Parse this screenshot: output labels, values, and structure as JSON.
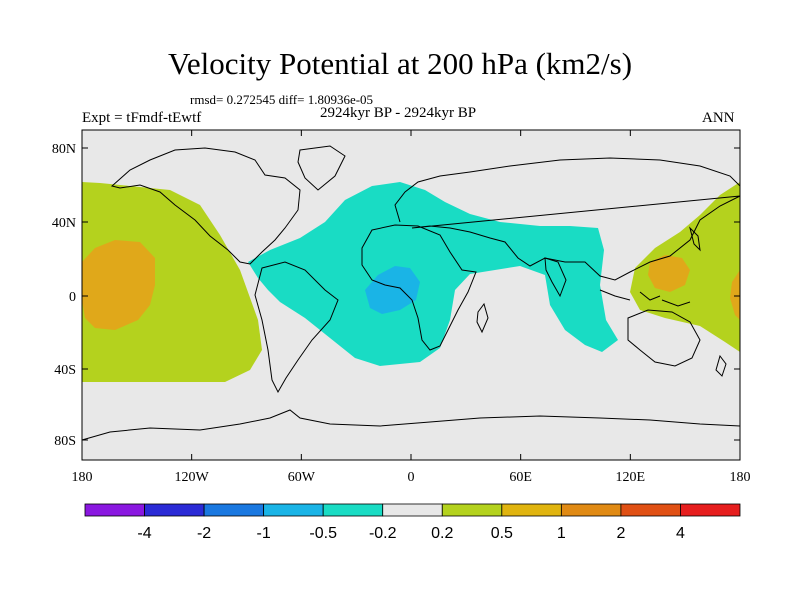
{
  "title": "Velocity Potential at 200 hPa (km2/s)",
  "stats": "rmsd= 0.272545 diff= 1.80936e-05",
  "experiment": "Expt = tFmdf-tEwtf",
  "period": "2924kyr BP - 2924kyr BP",
  "season": "ANN",
  "lat_labels": [
    "80N",
    "40N",
    "0",
    "40S",
    "80S"
  ],
  "lon_labels": [
    "180",
    "120W",
    "60W",
    "0",
    "60E",
    "120E",
    "180"
  ],
  "colorbar": {
    "labels": [
      "-4",
      "-2",
      "-1",
      "-0.5",
      "-0.2",
      "0.2",
      "0.5",
      "1",
      "2",
      "4"
    ],
    "colors": [
      "#8a17e0",
      "#2b2bd6",
      "#1a78e0",
      "#1ab4e6",
      "#19dcc4",
      "#e8e8e8",
      "#b4d21e",
      "#e0b40f",
      "#e08a14",
      "#e05014",
      "#e61e1e"
    ]
  },
  "region_colors": {
    "land_bg": "#e8e8e8",
    "cyan": "#19dcc4",
    "blue": "#1ab4e6",
    "yellow_green": "#b4d21e",
    "orange": "#e0a81a"
  }
}
